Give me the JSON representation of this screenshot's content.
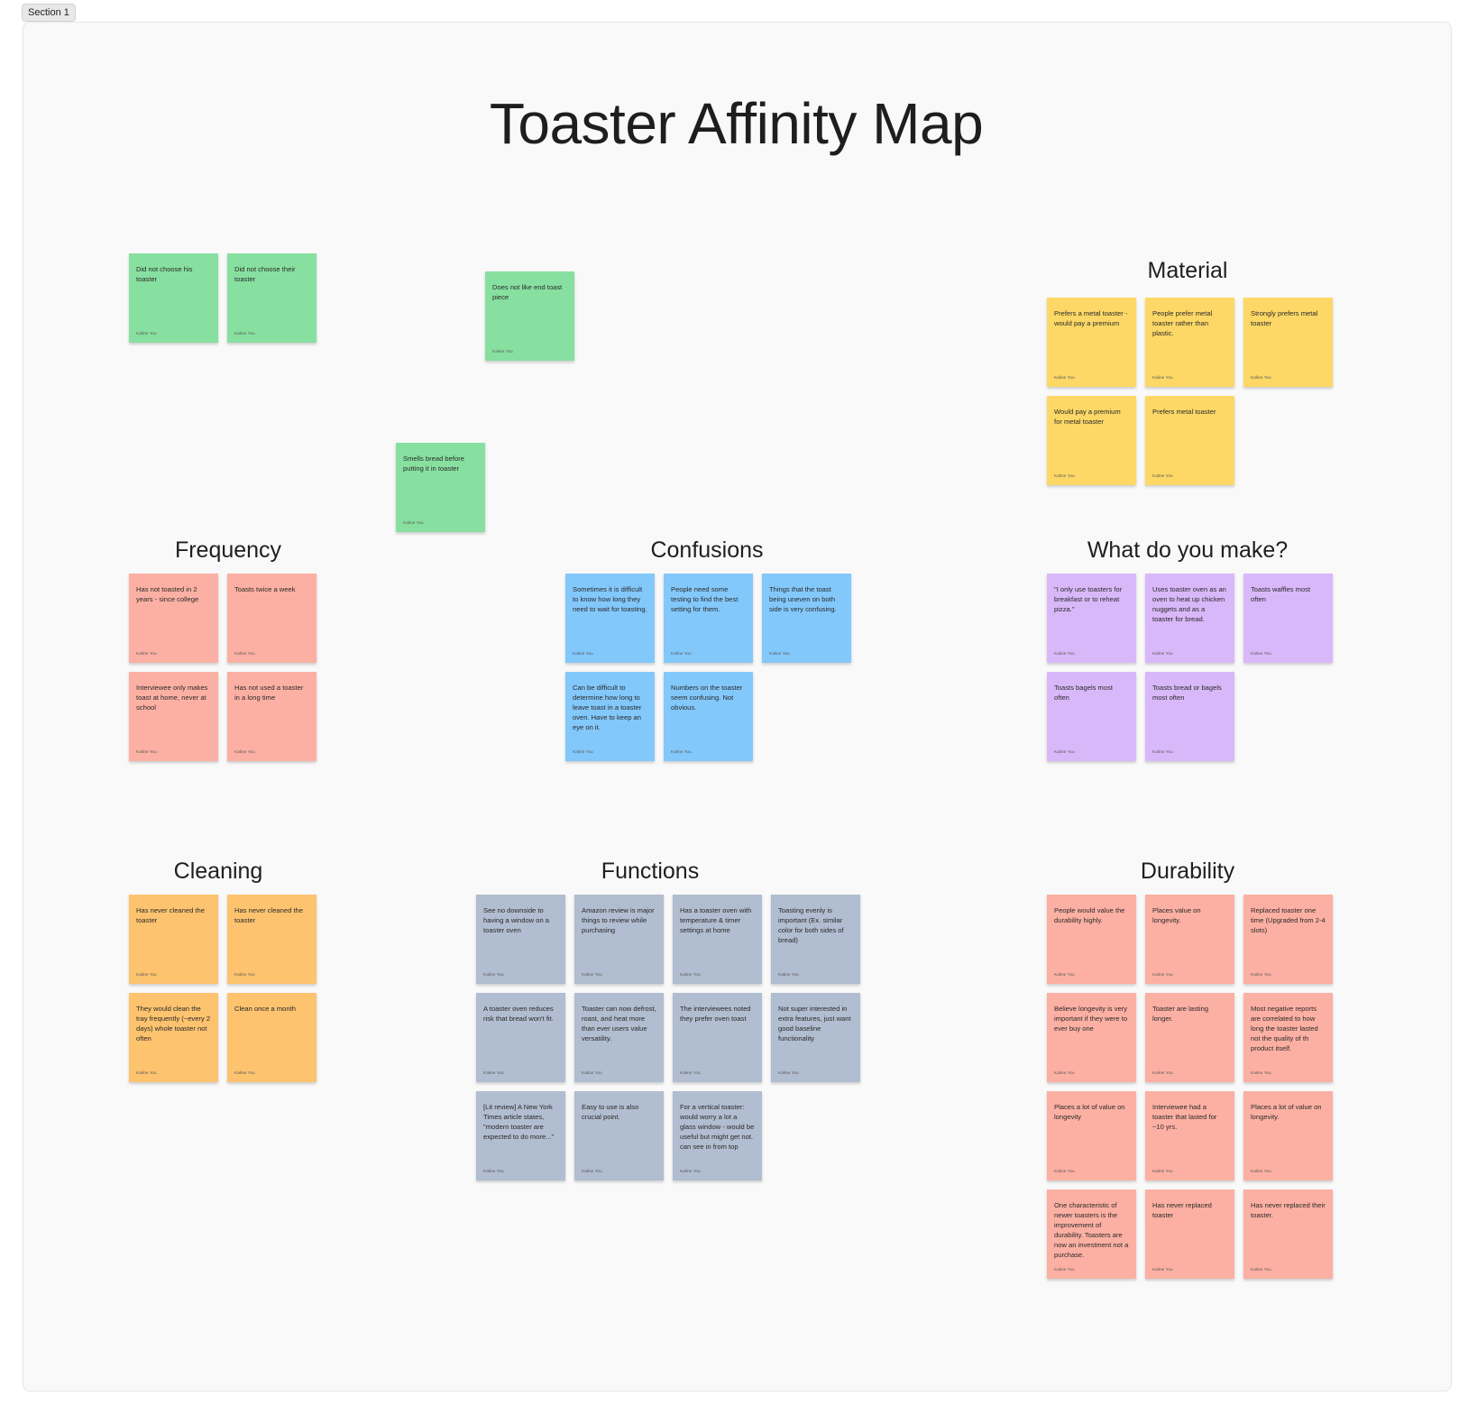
{
  "section_label": "Section 1",
  "board_title": "Toaster Affinity Map",
  "colors": {
    "green": "#87e0a0",
    "yellow": "#fdd866",
    "salmon": "#fcb0a3",
    "blue": "#83c8fb",
    "purple": "#d9b8f9",
    "orange": "#fdc36f",
    "gray": "#b1bdd0"
  },
  "group_titles": [
    "Material",
    "Frequency",
    "Confusions",
    "What do you make?",
    "Cleaning",
    "Functions",
    "Durability"
  ],
  "stickies": [
    {
      "text": "Did not choose his toaster",
      "author": "Kaline You",
      "color": "#87e0a0"
    },
    {
      "text": "Did not choose their toaster",
      "author": "Kaline You",
      "color": "#87e0a0"
    },
    {
      "text": "Does not like end toast piece",
      "author": "Kaline You",
      "color": "#87e0a0"
    },
    {
      "text": "Smells bread before putting it in toaster",
      "author": "Kaline You",
      "color": "#87e0a0"
    },
    {
      "text": "Prefers a metal toaster - would pay a premium",
      "author": "Kaline You",
      "color": "#fdd866"
    },
    {
      "text": "People prefer metal toaster rather than plastic.",
      "author": "Kaline You",
      "color": "#fdd866"
    },
    {
      "text": "Strongly prefers metal toaster",
      "author": "Kaline You",
      "color": "#fdd866"
    },
    {
      "text": "Would pay a premium for metal toaster",
      "author": "Kaline You",
      "color": "#fdd866"
    },
    {
      "text": "Prefers metal toaster",
      "author": "Kaline You",
      "color": "#fdd866"
    },
    {
      "text": "Has not toasted in 2 years - since college",
      "author": "Kaline You",
      "color": "#fcb0a3"
    },
    {
      "text": "Toasts twice a week",
      "author": "Kaline You",
      "color": "#fcb0a3"
    },
    {
      "text": "Interviewee only makes toast at home, never at school",
      "author": "Kaline You",
      "color": "#fcb0a3"
    },
    {
      "text": "Has not used a toaster in a long time",
      "author": "Kaline You",
      "color": "#fcb0a3"
    },
    {
      "text": "Sometimes it is difficult to know how long they need to wait for toasting.",
      "author": "Kaline You",
      "color": "#83c8fb"
    },
    {
      "text": "People need some testing to find the best setting for them.",
      "author": "Kaline You",
      "color": "#83c8fb"
    },
    {
      "text": "Things that the toast being uneven on both side is very confusing.",
      "author": "Kaline You",
      "color": "#83c8fb"
    },
    {
      "text": "Can be difficult to determine how long to leave toast in a toaster oven. Have to keep an eye on it.",
      "author": "Kaline You",
      "color": "#83c8fb"
    },
    {
      "text": "Numbers on the toaster seem confusing. Not obvious.",
      "author": "Kaline You",
      "color": "#83c8fb"
    },
    {
      "text": "\"I only use toasters for breakfast or to reheat pizza.\"",
      "author": "Kaline You",
      "color": "#d9b8f9"
    },
    {
      "text": "Uses toaster oven as an oven to heat up chicken nuggets and as a toaster for bread.",
      "author": "Kaline You",
      "color": "#d9b8f9"
    },
    {
      "text": "Toasts waffles most often",
      "author": "Kaline You",
      "color": "#d9b8f9"
    },
    {
      "text": "Toasts bagels most often",
      "author": "Kaline You",
      "color": "#d9b8f9"
    },
    {
      "text": "Toasts bread or bagels most often",
      "author": "Kaline You",
      "color": "#d9b8f9"
    },
    {
      "text": "Has never cleaned the toaster",
      "author": "Kaline You",
      "color": "#fdc36f"
    },
    {
      "text": "Has never cleaned the toaster",
      "author": "Kaline You",
      "color": "#fdc36f"
    },
    {
      "text": "They would clean the tray frequently (~every 2 days) whole toaster not often",
      "author": "Kaline You",
      "color": "#fdc36f"
    },
    {
      "text": "Clean once a month",
      "author": "Kaline You",
      "color": "#fdc36f"
    },
    {
      "text": "See no downside to having a window on a toaster oven",
      "author": "Kaline You",
      "color": "#b1bdd0"
    },
    {
      "text": "Amazon review is major things to review while purchasing",
      "author": "Kaline You",
      "color": "#b1bdd0"
    },
    {
      "text": "Has a toaster oven with temperature & timer settings at home",
      "author": "Kaline You",
      "color": "#b1bdd0"
    },
    {
      "text": "Toasting evenly is important (Ex. similar color for both sides of bread)",
      "author": "Kaline You",
      "color": "#b1bdd0"
    },
    {
      "text": "A toaster oven reduces risk that bread won't fit.",
      "author": "Kaline You",
      "color": "#b1bdd0"
    },
    {
      "text": "Toaster can now defrost, roast, and heat more than ever users value versatility.",
      "author": "Kaline You",
      "color": "#b1bdd0"
    },
    {
      "text": "The interviewees noted they prefer oven toast",
      "author": "Kaline You",
      "color": "#b1bdd0"
    },
    {
      "text": "Not super interested in extra features, just want good baseline functionality",
      "author": "Kaline You",
      "color": "#b1bdd0"
    },
    {
      "text": "[Lit review] A New York Times article states, \"modern toaster are expected to do more...\"",
      "author": "Kaline You",
      "color": "#b1bdd0"
    },
    {
      "text": "Easy to use is also crucial point.",
      "author": "Kaline You",
      "color": "#b1bdd0"
    },
    {
      "text": "For a vertical toaster: would worry a lot a glass window - would be useful but might get not. can see in from top",
      "author": "Kaline You",
      "color": "#b1bdd0"
    },
    {
      "text": "People would value the durability highly.",
      "author": "Kaline You",
      "color": "#fcb0a3"
    },
    {
      "text": "Places value on longevity.",
      "author": "Kaline You",
      "color": "#fcb0a3"
    },
    {
      "text": "Replaced toaster one time (Upgraded from 2-4 slots)",
      "author": "Kaline You",
      "color": "#fcb0a3"
    },
    {
      "text": "Believe longevity is very important if they were to ever buy one",
      "author": "Kaline You",
      "color": "#fcb0a3"
    },
    {
      "text": "Toaster are lasting longer.",
      "author": "Kaline You",
      "color": "#fcb0a3"
    },
    {
      "text": "Most negative reports are correlated to how long the toaster lasted not the quality of th product itself.",
      "author": "Kaline You",
      "color": "#fcb0a3"
    },
    {
      "text": "Places a lot of value on longevity",
      "author": "Kaline You",
      "color": "#fcb0a3"
    },
    {
      "text": "Interviewee had a toaster that lasted for ~10 yrs.",
      "author": "Kaline You",
      "color": "#fcb0a3"
    },
    {
      "text": "Places a lot of value on longevity.",
      "author": "Kaline You",
      "color": "#fcb0a3"
    },
    {
      "text": "One characteristic of newer toasters is the improvement of durability. Toasters are now an investment not a purchase.",
      "author": "Kaline You",
      "color": "#fcb0a3"
    },
    {
      "text": "Has never replaced toaster",
      "author": "Kaline You",
      "color": "#fcb0a3"
    },
    {
      "text": "Has never replaced their toaster.",
      "author": "Kaline You",
      "color": "#fcb0a3"
    }
  ]
}
